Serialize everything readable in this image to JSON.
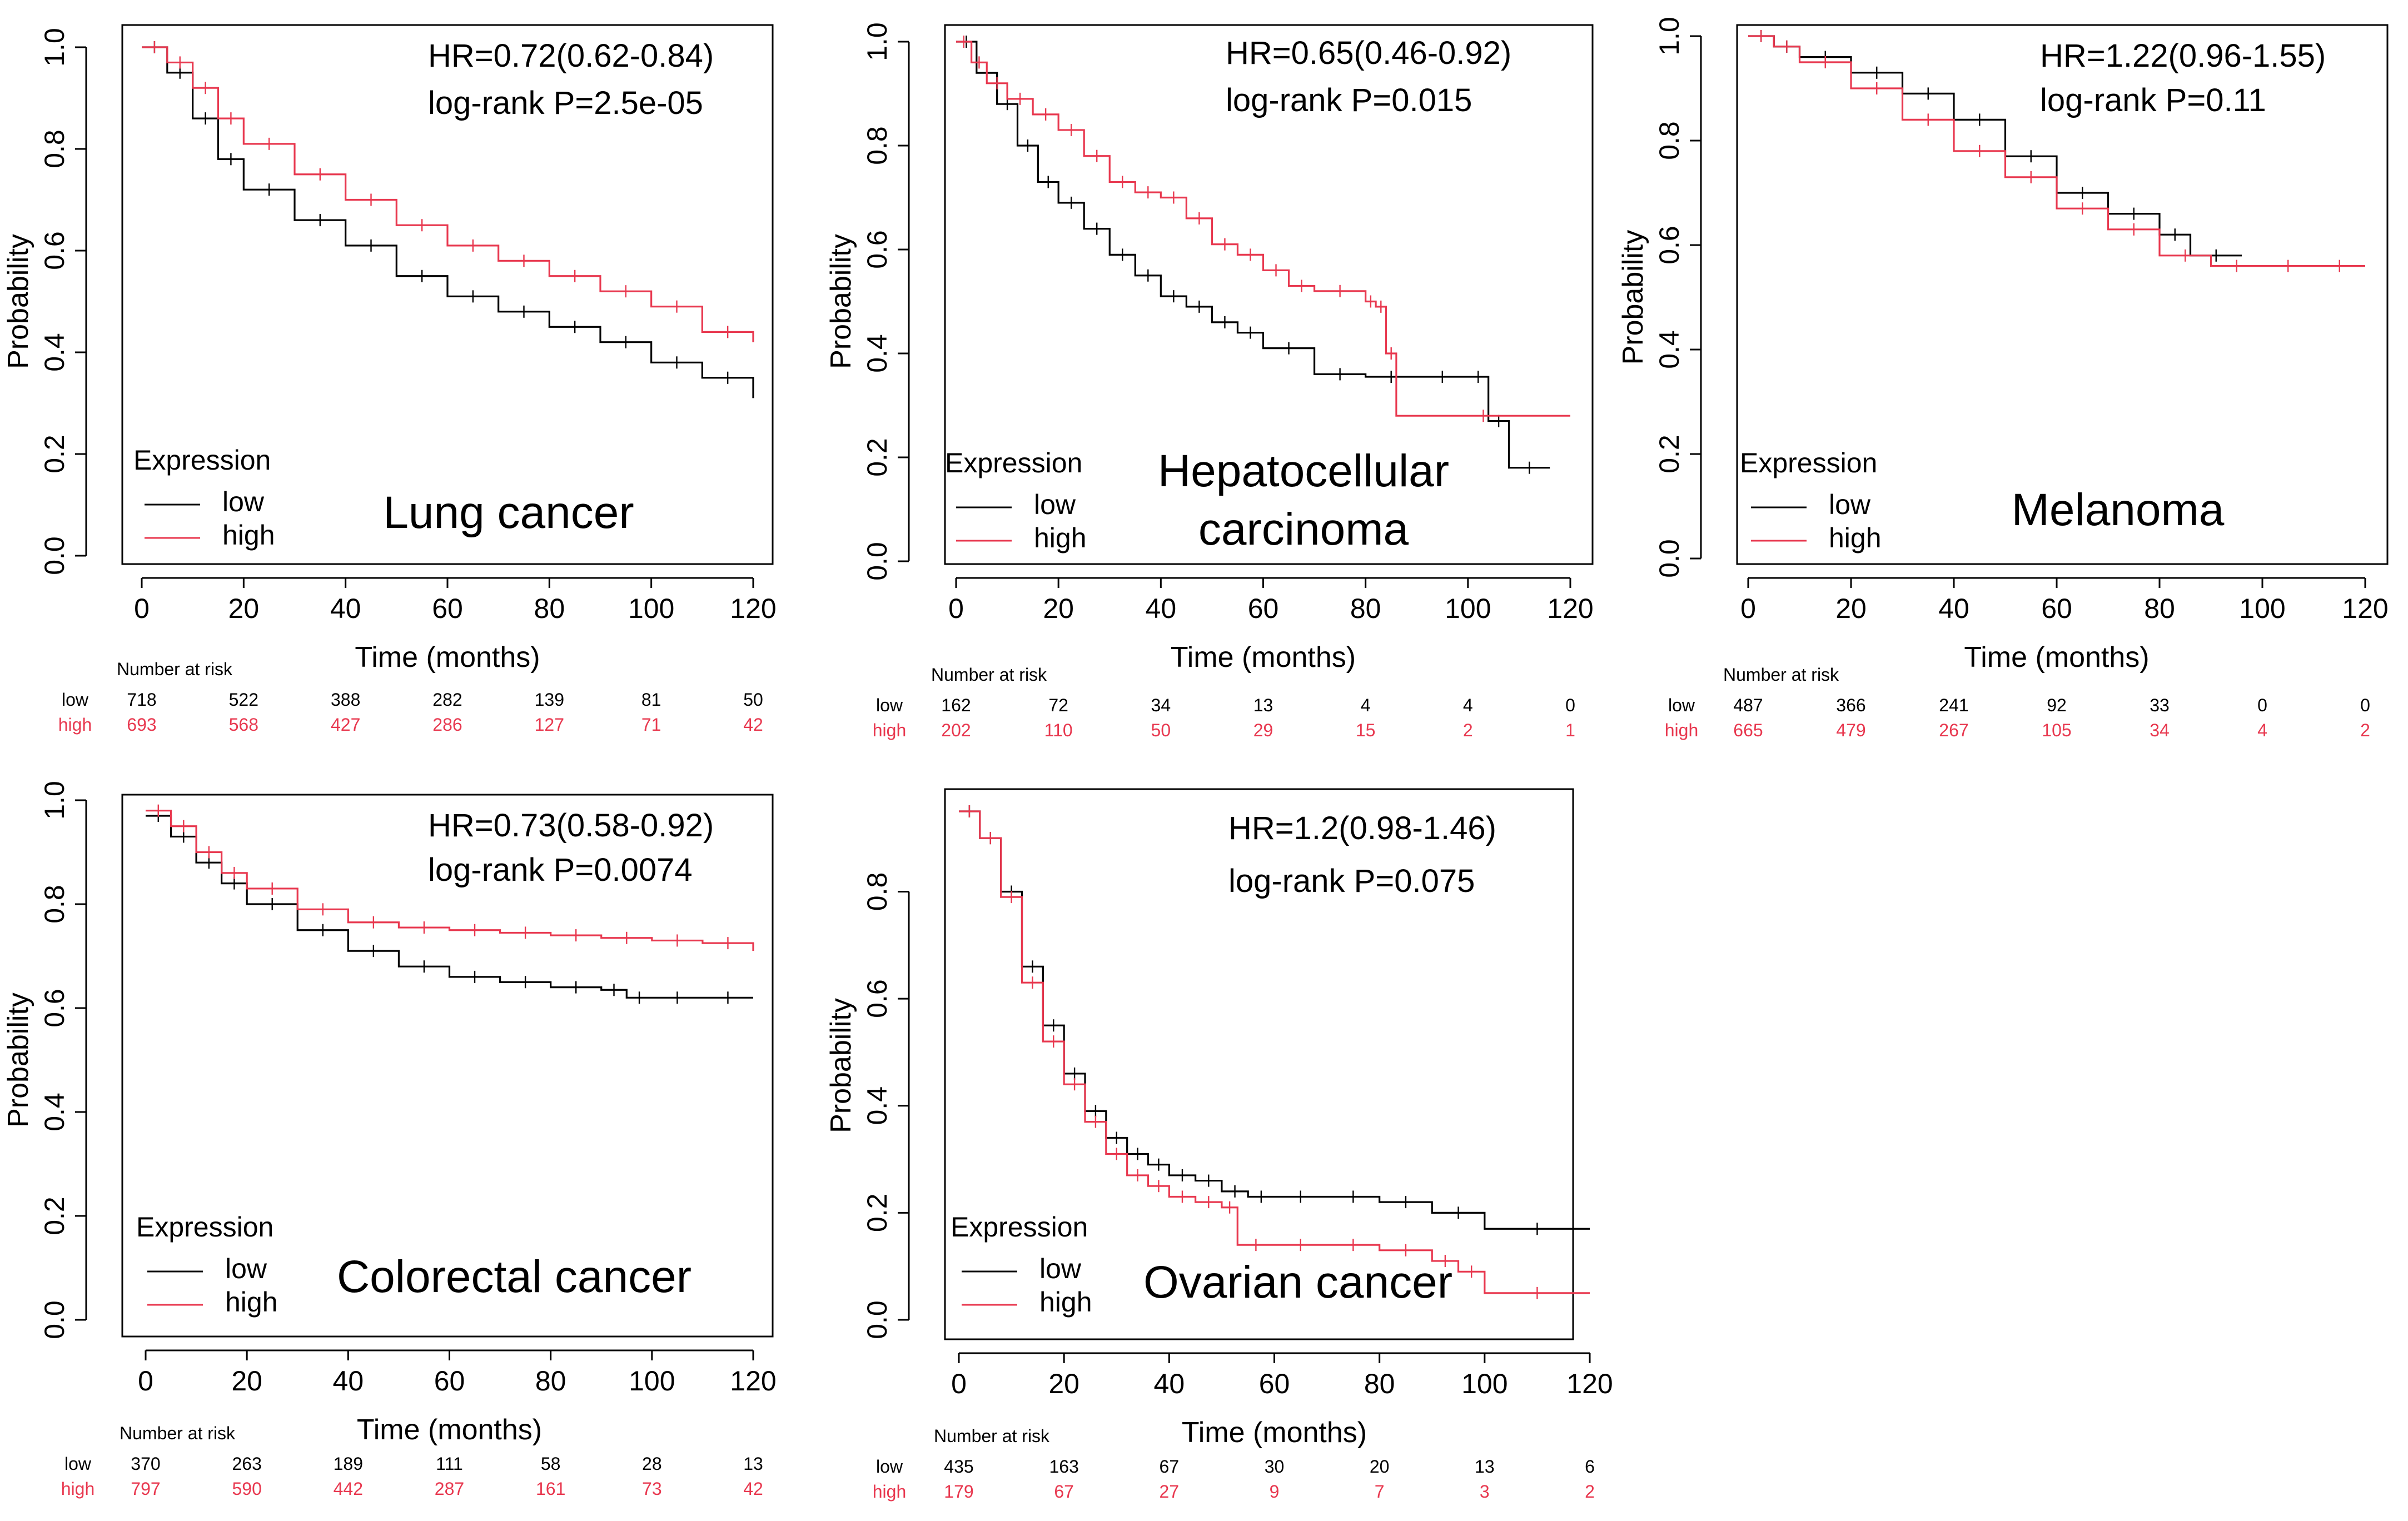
{
  "colors": {
    "low": "#000000",
    "high": "#e8384f",
    "axis": "#000000",
    "background": "#ffffff"
  },
  "chart_data": [
    {
      "type": "line",
      "title": "Lung cancer",
      "xlabel": "Time (months)",
      "ylabel": "Probability",
      "xlim": [
        0,
        120
      ],
      "ylim": [
        0,
        1
      ],
      "xticks": [
        "0",
        "20",
        "40",
        "60",
        "80",
        "100",
        "120"
      ],
      "yticks": [
        "0.0",
        "0.2",
        "0.4",
        "0.6",
        "0.8",
        "1.0"
      ],
      "stats": {
        "hr": "HR=0.72(0.62-0.84)",
        "p": "log-rank P=2.5e-05"
      },
      "legend": {
        "title": "Expression",
        "low": "low",
        "high": "high"
      },
      "series": [
        {
          "name": "low",
          "color": "#000000",
          "x": [
            0,
            5,
            10,
            15,
            20,
            30,
            40,
            50,
            60,
            70,
            80,
            90,
            100,
            110,
            120
          ],
          "y": [
            1.0,
            0.95,
            0.86,
            0.78,
            0.72,
            0.66,
            0.61,
            0.55,
            0.51,
            0.48,
            0.45,
            0.42,
            0.38,
            0.35,
            0.31
          ]
        },
        {
          "name": "high",
          "color": "#e8384f",
          "x": [
            0,
            5,
            10,
            15,
            20,
            30,
            40,
            50,
            60,
            70,
            80,
            90,
            100,
            110,
            120
          ],
          "y": [
            1.0,
            0.97,
            0.92,
            0.86,
            0.81,
            0.75,
            0.7,
            0.65,
            0.61,
            0.58,
            0.55,
            0.52,
            0.49,
            0.44,
            0.42
          ]
        }
      ],
      "risk_table": {
        "header": "Number at risk",
        "times": [
          0,
          20,
          40,
          60,
          80,
          100,
          120
        ],
        "low_label": "low",
        "high_label": "high",
        "low": [
          "718",
          "522",
          "388",
          "282",
          "139",
          "81",
          "50"
        ],
        "high": [
          "693",
          "568",
          "427",
          "286",
          "127",
          "71",
          "42"
        ]
      },
      "cancer_label": [
        "Lung cancer"
      ]
    },
    {
      "type": "line",
      "title": "Hepatocellular carcinoma",
      "xlabel": "Time (months)",
      "ylabel": "Probability",
      "xlim": [
        0,
        120
      ],
      "ylim": [
        0,
        1
      ],
      "xticks": [
        "0",
        "20",
        "40",
        "60",
        "80",
        "100",
        "120"
      ],
      "yticks": [
        "0.0",
        "0.2",
        "0.4",
        "0.6",
        "0.8",
        "1.0"
      ],
      "stats": {
        "hr": "HR=0.65(0.46-0.92)",
        "p": "log-rank P=0.015"
      },
      "legend": {
        "title": "Expression",
        "low": "low",
        "high": "high"
      },
      "series": [
        {
          "name": "low",
          "color": "#000000",
          "x": [
            0,
            4,
            8,
            12,
            16,
            20,
            25,
            30,
            35,
            40,
            45,
            50,
            55,
            60,
            70,
            80,
            90,
            100,
            104,
            108,
            116
          ],
          "y": [
            1.0,
            0.94,
            0.88,
            0.8,
            0.73,
            0.69,
            0.64,
            0.59,
            0.55,
            0.51,
            0.49,
            0.46,
            0.44,
            0.41,
            0.36,
            0.355,
            0.355,
            0.355,
            0.27,
            0.18,
            0.18
          ]
        },
        {
          "name": "high",
          "color": "#e8384f",
          "x": [
            0,
            3,
            6,
            10,
            15,
            20,
            25,
            30,
            35,
            40,
            45,
            50,
            55,
            60,
            65,
            70,
            80,
            82,
            84,
            86,
            120
          ],
          "y": [
            1.0,
            0.96,
            0.92,
            0.89,
            0.86,
            0.83,
            0.78,
            0.73,
            0.71,
            0.7,
            0.66,
            0.61,
            0.59,
            0.56,
            0.53,
            0.52,
            0.5,
            0.49,
            0.4,
            0.28,
            0.28
          ]
        }
      ],
      "risk_table": {
        "header": "Number at risk",
        "times": [
          0,
          20,
          40,
          60,
          80,
          100,
          120
        ],
        "low_label": "low",
        "high_label": "high",
        "low": [
          "162",
          "72",
          "34",
          "13",
          "4",
          "4",
          "0"
        ],
        "high": [
          "202",
          "110",
          "50",
          "29",
          "15",
          "2",
          "1"
        ]
      },
      "cancer_label": [
        "Hepatocellular",
        "carcinoma"
      ]
    },
    {
      "type": "line",
      "title": "Melanoma",
      "xlabel": "Time (months)",
      "ylabel": "Probability",
      "xlim": [
        0,
        120
      ],
      "ylim": [
        0,
        1
      ],
      "xticks": [
        "0",
        "20",
        "40",
        "60",
        "80",
        "100",
        "120"
      ],
      "yticks": [
        "0.0",
        "0.2",
        "0.4",
        "0.6",
        "0.8",
        "1.0"
      ],
      "stats": {
        "hr": "HR=1.22(0.96-1.55)",
        "p": "log-rank P=0.11"
      },
      "legend": {
        "title": "Expression",
        "low": "low",
        "high": "high"
      },
      "series": [
        {
          "name": "low",
          "color": "#000000",
          "x": [
            0,
            5,
            10,
            20,
            30,
            40,
            50,
            60,
            70,
            80,
            86,
            96
          ],
          "y": [
            1.0,
            0.98,
            0.96,
            0.93,
            0.89,
            0.84,
            0.77,
            0.7,
            0.66,
            0.62,
            0.58,
            0.58
          ]
        },
        {
          "name": "high",
          "color": "#e8384f",
          "x": [
            0,
            5,
            10,
            20,
            30,
            40,
            50,
            60,
            70,
            80,
            90,
            100,
            110,
            120
          ],
          "y": [
            1.0,
            0.98,
            0.95,
            0.9,
            0.84,
            0.78,
            0.73,
            0.67,
            0.63,
            0.58,
            0.56,
            0.56,
            0.56,
            0.56
          ]
        }
      ],
      "risk_table": {
        "header": "Number at risk",
        "times": [
          0,
          20,
          40,
          60,
          80,
          100,
          120
        ],
        "low_label": "low",
        "high_label": "high",
        "low": [
          "487",
          "366",
          "241",
          "92",
          "33",
          "0",
          "0"
        ],
        "high": [
          "665",
          "479",
          "267",
          "105",
          "34",
          "4",
          "2"
        ]
      },
      "cancer_label": [
        "Melanoma"
      ]
    },
    {
      "type": "line",
      "title": "Colorectal cancer",
      "xlabel": "Time (months)",
      "ylabel": "Probability",
      "xlim": [
        0,
        120
      ],
      "ylim": [
        0,
        1
      ],
      "xticks": [
        "0",
        "20",
        "40",
        "60",
        "80",
        "100",
        "120"
      ],
      "yticks": [
        "0.0",
        "0.2",
        "0.4",
        "0.6",
        "0.8",
        "1.0"
      ],
      "stats": {
        "hr": "HR=0.73(0.58-0.92)",
        "p": "log-rank P=0.0074"
      },
      "legend": {
        "title": "Expression",
        "low": "low",
        "high": "high"
      },
      "series": [
        {
          "name": "low",
          "color": "#000000",
          "x": [
            0,
            5,
            10,
            15,
            20,
            30,
            40,
            50,
            60,
            70,
            80,
            90,
            95,
            100,
            110,
            120
          ],
          "y": [
            0.97,
            0.93,
            0.88,
            0.84,
            0.8,
            0.75,
            0.71,
            0.68,
            0.66,
            0.65,
            0.64,
            0.635,
            0.62,
            0.62,
            0.62,
            0.62
          ]
        },
        {
          "name": "high",
          "color": "#e8384f",
          "x": [
            0,
            5,
            10,
            15,
            20,
            30,
            40,
            50,
            60,
            70,
            80,
            90,
            100,
            110,
            120
          ],
          "y": [
            0.98,
            0.95,
            0.9,
            0.86,
            0.83,
            0.79,
            0.765,
            0.755,
            0.75,
            0.745,
            0.74,
            0.735,
            0.73,
            0.725,
            0.71
          ]
        }
      ],
      "risk_table": {
        "header": "Number at risk",
        "times": [
          0,
          20,
          40,
          60,
          80,
          100,
          120
        ],
        "low_label": "low",
        "high_label": "high",
        "low": [
          "370",
          "263",
          "189",
          "111",
          "58",
          "28",
          "13"
        ],
        "high": [
          "797",
          "590",
          "442",
          "287",
          "161",
          "73",
          "42"
        ]
      },
      "cancer_label": [
        "Colorectal cancer"
      ]
    },
    {
      "type": "line",
      "title": "Ovarian cancer",
      "xlabel": "Time (months)",
      "ylabel": "Probability",
      "xlim": [
        0,
        120
      ],
      "ylim": [
        0,
        0.95
      ],
      "xticks": [
        "0",
        "20",
        "40",
        "60",
        "80",
        "100",
        "120"
      ],
      "yticks": [
        "0.0",
        "0.2",
        "0.4",
        "0.6",
        "0.8"
      ],
      "stats": {
        "hr": "HR=1.2(0.98-1.46)",
        "p": "log-rank P=0.075"
      },
      "legend": {
        "title": "Expression",
        "low": "low",
        "high": "high"
      },
      "series": [
        {
          "name": "low",
          "color": "#000000",
          "x": [
            0,
            4,
            8,
            12,
            16,
            20,
            24,
            28,
            32,
            36,
            40,
            45,
            50,
            55,
            60,
            70,
            80,
            90,
            100,
            120
          ],
          "y": [
            0.95,
            0.9,
            0.8,
            0.66,
            0.55,
            0.46,
            0.39,
            0.34,
            0.31,
            0.29,
            0.27,
            0.26,
            0.24,
            0.23,
            0.23,
            0.23,
            0.22,
            0.2,
            0.17,
            0.17
          ]
        },
        {
          "name": "high",
          "color": "#e8384f",
          "x": [
            0,
            4,
            8,
            12,
            16,
            20,
            24,
            28,
            32,
            36,
            40,
            45,
            50,
            53,
            60,
            70,
            80,
            90,
            95,
            100,
            120
          ],
          "y": [
            0.95,
            0.9,
            0.79,
            0.63,
            0.52,
            0.44,
            0.37,
            0.31,
            0.27,
            0.25,
            0.23,
            0.22,
            0.21,
            0.14,
            0.14,
            0.14,
            0.13,
            0.11,
            0.09,
            0.05,
            0.05
          ]
        }
      ],
      "risk_table": {
        "header": "Number at risk",
        "times": [
          0,
          20,
          40,
          60,
          80,
          100,
          120
        ],
        "low_label": "low",
        "high_label": "high",
        "low": [
          "435",
          "163",
          "67",
          "30",
          "20",
          "13",
          "6"
        ],
        "high": [
          "179",
          "67",
          "27",
          "9",
          "7",
          "3",
          "2"
        ]
      },
      "cancer_label": [
        "Ovarian cancer"
      ]
    }
  ]
}
